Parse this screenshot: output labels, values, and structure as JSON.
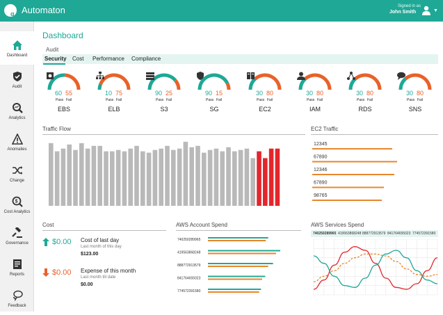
{
  "app": {
    "title": "Automaton",
    "logo_text": "α",
    "signed_in_label": "Signed in as",
    "user_name": "John Smith"
  },
  "sidebar": {
    "items": [
      {
        "label": "Dashboard",
        "icon": "home-icon",
        "active": true
      },
      {
        "label": "Audit",
        "icon": "shield-icon",
        "active": false
      },
      {
        "label": "Analytics",
        "icon": "magnifier-icon",
        "active": false
      },
      {
        "label": "Anomalies",
        "icon": "warning-icon",
        "active": false
      },
      {
        "label": "Change",
        "icon": "shuffle-icon",
        "active": false
      },
      {
        "label": "Cost Analytics",
        "icon": "dollar-search-icon",
        "active": false
      },
      {
        "label": "Governance",
        "icon": "gavel-icon",
        "active": false
      },
      {
        "label": "Reports",
        "icon": "report-icon",
        "active": false
      },
      {
        "label": "Feedback",
        "icon": "chat-icon",
        "active": false
      }
    ]
  },
  "main": {
    "page_title": "Dashboard",
    "section_label": "Audit",
    "tabs": [
      {
        "label": "Security",
        "active": true
      },
      {
        "label": "Cost",
        "active": false
      },
      {
        "label": "Performance",
        "active": false
      },
      {
        "label": "Compliance",
        "active": false
      }
    ],
    "pass_label": "Pass",
    "fail_label": "Fail",
    "gauges": [
      {
        "name": "EBS",
        "pass": "60",
        "fail": "55",
        "pass_frac": 0.52,
        "icon": "disk-icon"
      },
      {
        "name": "ELB",
        "pass": "10",
        "fail": "75",
        "pass_frac": 0.12,
        "icon": "network-icon"
      },
      {
        "name": "S3",
        "pass": "90",
        "fail": "25",
        "pass_frac": 0.78,
        "icon": "storage-icon"
      },
      {
        "name": "SG",
        "pass": "90",
        "fail": "15",
        "pass_frac": 0.86,
        "icon": "shield-icon"
      },
      {
        "name": "EC2",
        "pass": "30",
        "fail": "80",
        "pass_frac": 0.27,
        "icon": "server-icon"
      },
      {
        "name": "IAM",
        "pass": "30",
        "fail": "80",
        "pass_frac": 0.27,
        "icon": "user-icon"
      },
      {
        "name": "RDS",
        "pass": "30",
        "fail": "80",
        "pass_frac": 0.27,
        "icon": "database-icon"
      },
      {
        "name": "SNS",
        "pass": "30",
        "fail": "80",
        "pass_frac": 0.27,
        "icon": "message-icon"
      }
    ]
  },
  "traffic_flow": {
    "title": "Traffic Flow"
  },
  "ec2_traffic": {
    "title": "EC2 Traffic"
  },
  "cost": {
    "title": "Cost",
    "rows": [
      {
        "value": "$0.00",
        "label": "Cost of last day",
        "sub": "Last month of this day",
        "amount": "$123.00",
        "direction": "up"
      },
      {
        "value": "$0.00",
        "label": "Expense of this month",
        "sub": "Last month till date",
        "amount": "$0.00",
        "direction": "down"
      }
    ]
  },
  "aws_account": {
    "title": "AWS Account Spend"
  },
  "aws_services": {
    "title": "AWS Services Spend",
    "tabs": [
      "740250289965",
      "419563868248",
      "888772913579",
      "841764655023",
      "774572391580"
    ]
  },
  "colors": {
    "teal": "#1fa896",
    "orange": "#e8862a",
    "red": "#e3262c",
    "gray_bar": "#b9b9b9"
  },
  "chart_data": [
    {
      "type": "bar",
      "name": "Traffic Flow",
      "title": "Traffic Flow",
      "values": [
        46,
        40,
        42,
        45,
        41,
        46,
        42,
        44,
        44,
        40,
        40,
        41,
        40,
        42,
        44,
        40,
        39,
        41,
        42,
        44,
        41,
        42,
        47,
        43,
        44,
        39,
        41,
        42,
        40,
        43,
        40,
        41,
        42,
        35,
        40,
        35,
        42,
        42
      ],
      "highlight_from_index": 34,
      "ylim": [
        0,
        50
      ]
    },
    {
      "type": "bar",
      "name": "EC2 Traffic",
      "title": "EC2 Traffic",
      "orientation": "horizontal",
      "categories": [
        "12345",
        "67890",
        "12346",
        "67890",
        "98765"
      ],
      "values": [
        115,
        122,
        118,
        103,
        100
      ],
      "xlim": [
        0,
        180
      ]
    },
    {
      "type": "bar",
      "name": "AWS Account Spend",
      "title": "AWS Account Spend",
      "orientation": "horizontal",
      "categories": [
        "740250289965",
        "419563868248",
        "888772913579",
        "841764655023",
        "774572391580"
      ],
      "series": [
        {
          "values": [
            100,
            120,
            108,
            95,
            88
          ]
        },
        {
          "values": [
            96,
            113,
            100,
            90,
            85
          ]
        }
      ],
      "xlim": [
        0,
        150
      ]
    },
    {
      "type": "line",
      "name": "AWS Services Spend",
      "title": "AWS Services Spend",
      "x": [
        0,
        1,
        2,
        3,
        4,
        5,
        6,
        7,
        8,
        9,
        10,
        11,
        12
      ],
      "series": [
        {
          "values": [
            3,
            8,
            16,
            23,
            26,
            24,
            17,
            9,
            4,
            3,
            6,
            13,
            20
          ]
        },
        {
          "values": [
            21,
            17,
            10,
            5,
            4,
            9,
            16,
            22,
            24,
            20,
            13,
            8,
            6
          ]
        },
        {
          "values": [
            7,
            10,
            13,
            17,
            20,
            22,
            22,
            21,
            18,
            14,
            11,
            10,
            11
          ]
        }
      ],
      "grid": true
    }
  ]
}
